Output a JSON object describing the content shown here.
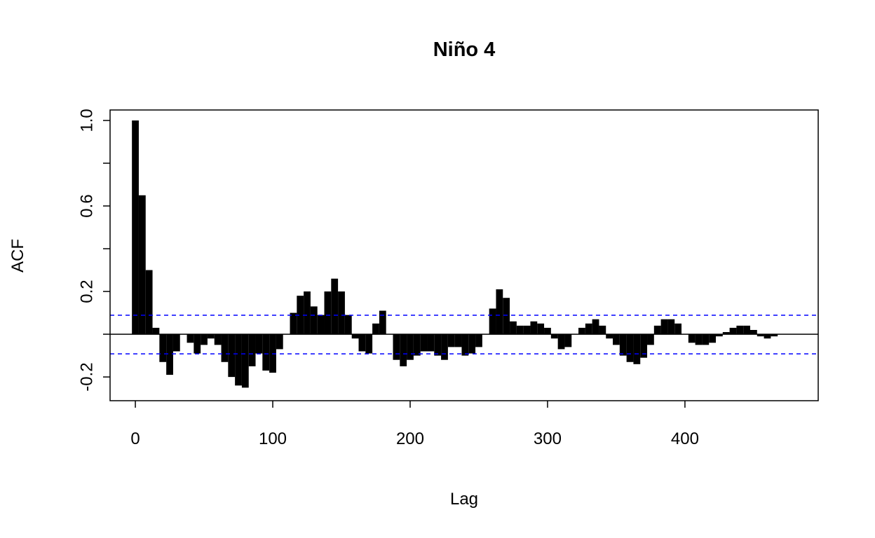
{
  "chart_data": {
    "type": "acf",
    "title": "Niño 4",
    "xlabel": "Lag",
    "ylabel": "ACF",
    "x": [
      0,
      5,
      10,
      15,
      20,
      25,
      30,
      35,
      40,
      45,
      50,
      55,
      60,
      65,
      70,
      75,
      80,
      85,
      90,
      95,
      100,
      105,
      110,
      115,
      120,
      125,
      130,
      135,
      140,
      145,
      150,
      155,
      160,
      165,
      170,
      175,
      180,
      185,
      190,
      195,
      200,
      205,
      210,
      215,
      220,
      225,
      230,
      235,
      240,
      245,
      250,
      255,
      260,
      265,
      270,
      275,
      280,
      285,
      290,
      295,
      300,
      305,
      310,
      315,
      320,
      325,
      330,
      335,
      340,
      345,
      350,
      355,
      360,
      365,
      370,
      375,
      380,
      385,
      390,
      395,
      400,
      405,
      410,
      415,
      420,
      425,
      430,
      435,
      440,
      445,
      450,
      455,
      460,
      465,
      470,
      475
    ],
    "values": [
      1.0,
      0.65,
      0.3,
      0.03,
      -0.13,
      -0.19,
      -0.08,
      0.0,
      -0.04,
      -0.09,
      -0.05,
      -0.02,
      -0.05,
      -0.13,
      -0.2,
      -0.24,
      -0.25,
      -0.15,
      -0.09,
      -0.17,
      -0.18,
      -0.07,
      0.0,
      0.1,
      0.18,
      0.2,
      0.13,
      0.09,
      0.2,
      0.26,
      0.2,
      0.09,
      -0.02,
      -0.08,
      -0.09,
      0.05,
      0.11,
      0.0,
      -0.12,
      -0.15,
      -0.12,
      -0.1,
      -0.08,
      -0.08,
      -0.1,
      -0.12,
      -0.06,
      -0.06,
      -0.1,
      -0.09,
      -0.06,
      0.0,
      0.12,
      0.21,
      0.17,
      0.06,
      0.04,
      0.04,
      0.06,
      0.05,
      0.03,
      -0.02,
      -0.07,
      -0.06,
      0.0,
      0.03,
      0.05,
      0.07,
      0.04,
      -0.02,
      -0.05,
      -0.1,
      -0.13,
      -0.14,
      -0.11,
      -0.05,
      0.04,
      0.07,
      0.07,
      0.05,
      0.0,
      -0.04,
      -0.05,
      -0.05,
      -0.04,
      -0.01,
      0.01,
      0.03,
      0.04,
      0.04,
      0.02,
      -0.01,
      -0.02,
      -0.01,
      0.0,
      0.0
    ],
    "color": "#000000",
    "conf_limits": [
      -0.092,
      0.089
    ],
    "conf_color": "#0000ff",
    "xlim": [
      -18.4,
      497
    ],
    "ylim": [
      -0.311,
      1.049
    ],
    "xticks": [
      0,
      100,
      200,
      300,
      400
    ],
    "yticks": [
      -0.2,
      0.2,
      0.6,
      {
        "value": 1,
        "label": "1.0"
      }
    ],
    "yminor_ticks": [
      0,
      0.4,
      0.8
    ]
  }
}
